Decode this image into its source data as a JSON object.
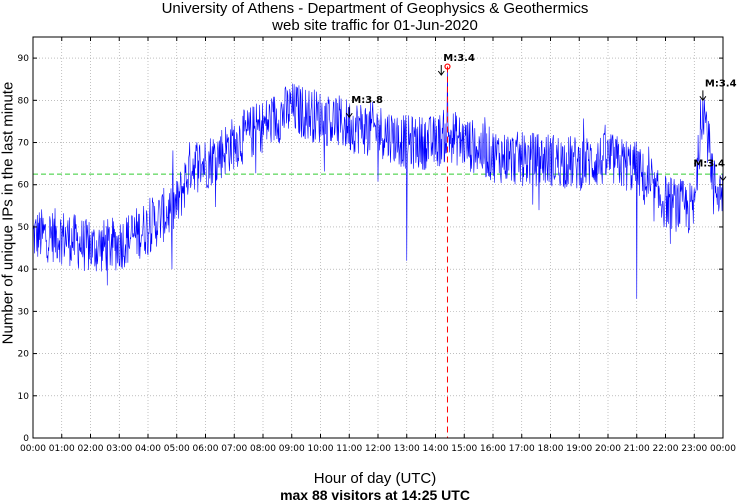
{
  "header": {
    "title_line1": "University of Athens - Department of Geophysics & Geothermics",
    "title_line2": "web site traffic for 01-Jun-2020"
  },
  "footer": {
    "summary": "max 88 visitors at 14:25 UTC"
  },
  "chart_data": {
    "type": "line",
    "title": "University of Athens - Department of Geophysics & Geothermics web site traffic for 01-Jun-2020",
    "xlabel": "Hour of day (UTC)",
    "ylabel": "Number of unique IPs in the last minute",
    "xlim": [
      0,
      24
    ],
    "ylim": [
      0,
      95
    ],
    "x_tick_labels": [
      "00:00",
      "01:00",
      "02:00",
      "03:00",
      "04:00",
      "05:00",
      "06:00",
      "07:00",
      "08:00",
      "09:00",
      "10:00",
      "11:00",
      "12:00",
      "13:00",
      "14:00",
      "15:00",
      "16:00",
      "17:00",
      "18:00",
      "19:00",
      "20:00",
      "21:00",
      "22:00",
      "23:00",
      "00:00"
    ],
    "y_ticks": [
      0,
      10,
      20,
      30,
      40,
      50,
      60,
      70,
      80,
      90
    ],
    "grid": true,
    "colors": {
      "series": "#0000ff",
      "mean_line": "#33cc33",
      "max_marker": "#ff0000"
    },
    "mean_level": 62.5,
    "max": {
      "time_hours": 14.4167,
      "value": 88
    },
    "series_trend": {
      "hours": [
        0,
        1,
        2,
        3,
        4,
        5,
        5.5,
        6,
        7,
        8,
        9,
        10,
        11,
        12,
        13,
        14,
        14.4,
        15,
        16,
        17,
        18,
        19,
        20,
        21,
        21.5,
        22,
        23,
        23.3,
        23.5,
        23.7,
        24
      ],
      "values": [
        48,
        48,
        45,
        46,
        50,
        55,
        65,
        65,
        70,
        74,
        78,
        76,
        74,
        73,
        70,
        70,
        72,
        70,
        67,
        66,
        66,
        65,
        66,
        64,
        58,
        56,
        54,
        80,
        70,
        60,
        58
      ]
    },
    "annotations": [
      {
        "text": "M:3.8",
        "time_hours": 11.0,
        "value": 76
      },
      {
        "text": "M:3.4",
        "time_hours": 14.2,
        "value": 86
      },
      {
        "text": "M:3.4",
        "time_hours": 23.3,
        "value": 80
      },
      {
        "text": "M:3.4",
        "time_hours": 24.0,
        "value": 61
      }
    ]
  }
}
